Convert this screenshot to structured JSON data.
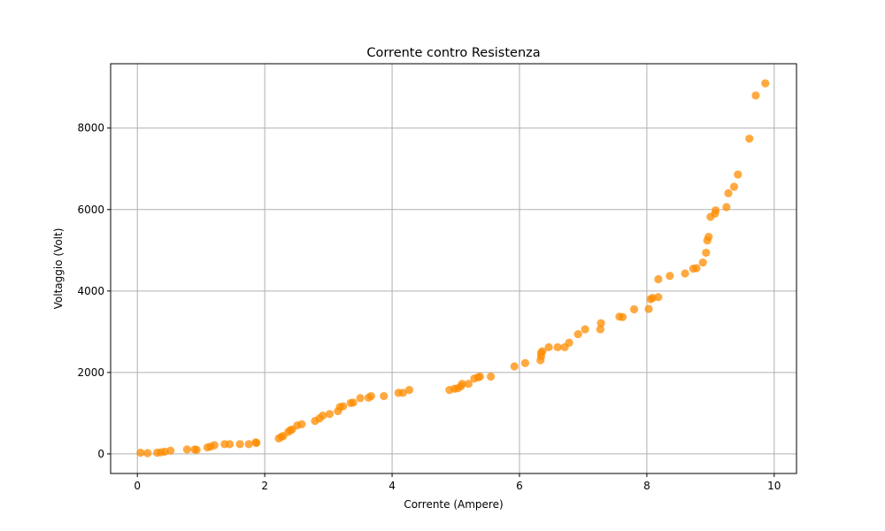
{
  "chart_data": {
    "type": "scatter",
    "title": "Corrente contro Resistenza",
    "xlabel": "Corrente (Ampere)",
    "ylabel": "Voltaggio (Volt)",
    "xlim": [
      -0.42,
      10.35
    ],
    "ylim": [
      -480,
      9580
    ],
    "x_ticks": [
      0,
      2,
      4,
      6,
      8,
      10
    ],
    "y_ticks": [
      0,
      2000,
      4000,
      6000,
      8000
    ],
    "grid": true,
    "marker_color": "#ff8c00",
    "marker_alpha": 0.75,
    "points": [
      [
        0.05,
        30
      ],
      [
        0.16,
        20
      ],
      [
        0.31,
        30
      ],
      [
        0.37,
        40
      ],
      [
        0.43,
        55
      ],
      [
        0.52,
        80
      ],
      [
        0.78,
        110
      ],
      [
        0.9,
        110
      ],
      [
        0.93,
        100
      ],
      [
        1.1,
        160
      ],
      [
        1.15,
        180
      ],
      [
        1.21,
        215
      ],
      [
        1.37,
        240
      ],
      [
        1.45,
        240
      ],
      [
        1.61,
        240
      ],
      [
        1.75,
        240
      ],
      [
        1.86,
        285
      ],
      [
        1.87,
        270
      ],
      [
        2.22,
        380
      ],
      [
        2.26,
        420
      ],
      [
        2.29,
        440
      ],
      [
        2.37,
        540
      ],
      [
        2.4,
        580
      ],
      [
        2.43,
        600
      ],
      [
        2.51,
        700
      ],
      [
        2.58,
        730
      ],
      [
        2.79,
        810
      ],
      [
        2.86,
        870
      ],
      [
        2.91,
        940
      ],
      [
        3.02,
        980
      ],
      [
        3.15,
        1050
      ],
      [
        3.18,
        1150
      ],
      [
        3.23,
        1170
      ],
      [
        3.35,
        1250
      ],
      [
        3.39,
        1260
      ],
      [
        3.5,
        1370
      ],
      [
        3.63,
        1380
      ],
      [
        3.67,
        1420
      ],
      [
        3.87,
        1420
      ],
      [
        4.1,
        1500
      ],
      [
        4.17,
        1500
      ],
      [
        4.27,
        1570
      ],
      [
        4.9,
        1570
      ],
      [
        4.98,
        1600
      ],
      [
        5.03,
        1610
      ],
      [
        5.08,
        1660
      ],
      [
        5.1,
        1720
      ],
      [
        5.2,
        1720
      ],
      [
        5.29,
        1850
      ],
      [
        5.35,
        1880
      ],
      [
        5.38,
        1900
      ],
      [
        5.55,
        1900
      ],
      [
        5.92,
        2150
      ],
      [
        6.09,
        2230
      ],
      [
        6.33,
        2300
      ],
      [
        6.34,
        2400
      ],
      [
        6.34,
        2480
      ],
      [
        6.36,
        2520
      ],
      [
        6.46,
        2620
      ],
      [
        6.6,
        2620
      ],
      [
        6.71,
        2620
      ],
      [
        6.78,
        2730
      ],
      [
        6.92,
        2940
      ],
      [
        7.03,
        3060
      ],
      [
        7.27,
        3060
      ],
      [
        7.28,
        3210
      ],
      [
        7.57,
        3370
      ],
      [
        7.62,
        3360
      ],
      [
        7.8,
        3550
      ],
      [
        8.03,
        3560
      ],
      [
        8.06,
        3800
      ],
      [
        8.09,
        3830
      ],
      [
        8.18,
        3850
      ],
      [
        8.18,
        4290
      ],
      [
        8.36,
        4370
      ],
      [
        8.6,
        4430
      ],
      [
        8.73,
        4550
      ],
      [
        8.78,
        4560
      ],
      [
        8.88,
        4700
      ],
      [
        8.93,
        4940
      ],
      [
        8.95,
        5240
      ],
      [
        8.97,
        5330
      ],
      [
        9.0,
        5820
      ],
      [
        9.07,
        5900
      ],
      [
        9.08,
        5980
      ],
      [
        9.25,
        6060
      ],
      [
        9.28,
        6400
      ],
      [
        9.37,
        6560
      ],
      [
        9.43,
        6860
      ],
      [
        9.61,
        7740
      ],
      [
        9.71,
        8800
      ],
      [
        9.86,
        9100
      ]
    ]
  }
}
